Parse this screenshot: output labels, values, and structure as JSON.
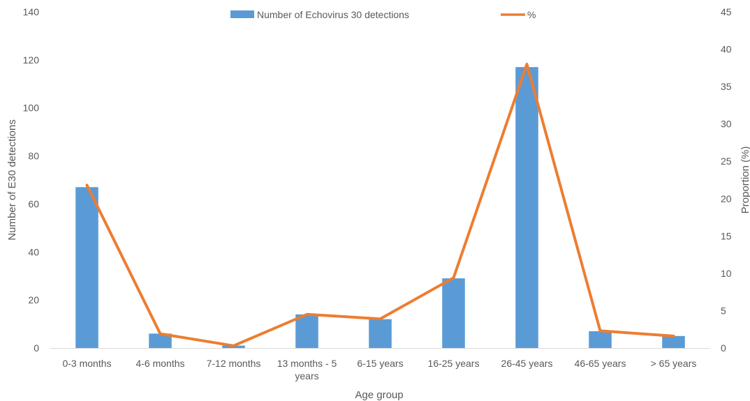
{
  "chart_data": {
    "type": "bar",
    "title": "",
    "xlabel": "Age group",
    "ylabel": "Number of E30 detections",
    "y2label": "Proportion (%)",
    "categories": [
      [
        "0-3 months"
      ],
      [
        "4-6 months"
      ],
      [
        "7-12 months"
      ],
      [
        "13 months - 5",
        "years"
      ],
      [
        "6-15 years"
      ],
      [
        "16-25 years"
      ],
      [
        "26-45 years"
      ],
      [
        "46-65 years"
      ],
      [
        "> 65 years"
      ]
    ],
    "ylim": [
      0,
      140
    ],
    "yticks": [
      0,
      20,
      40,
      60,
      80,
      100,
      120,
      140
    ],
    "y2lim": [
      0,
      45
    ],
    "y2ticks": [
      0,
      5,
      10,
      15,
      20,
      25,
      30,
      35,
      40,
      45
    ],
    "grid": false,
    "legend_position": "top",
    "series": [
      {
        "name": "Number of Echovirus 30 detections",
        "type": "bar",
        "axis": "left",
        "color": "#5B9BD5",
        "values": [
          67,
          6,
          1,
          14,
          12,
          29,
          117,
          7,
          5
        ]
      },
      {
        "name": "%",
        "type": "line",
        "axis": "right",
        "color": "#ED7D31",
        "values": [
          21.8,
          1.9,
          0.3,
          4.5,
          3.9,
          9.4,
          38.0,
          2.3,
          1.6
        ]
      }
    ]
  }
}
